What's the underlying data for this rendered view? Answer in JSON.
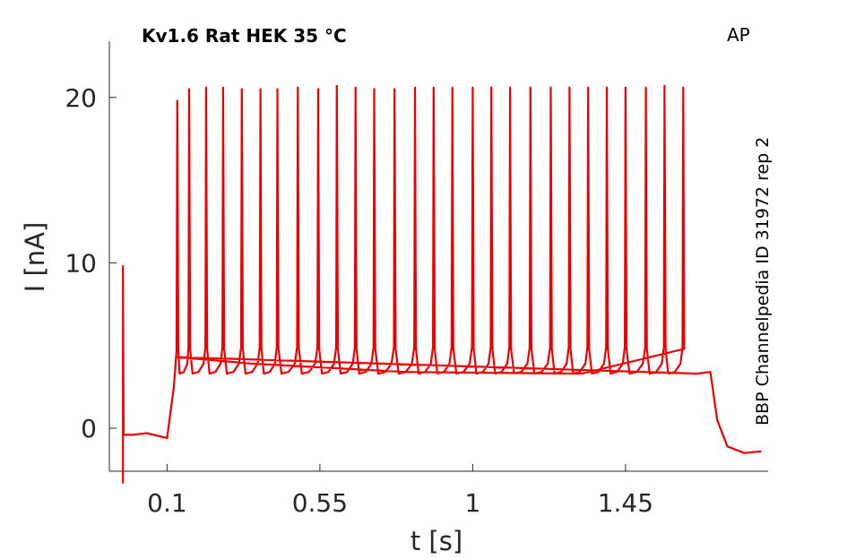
{
  "chart_data": {
    "type": "line",
    "title": "Kv1.6  Rat  HEK  35 °C",
    "corner_label": "AP",
    "side_label": "BBP Channelpedia ID 31972 rep 2",
    "xlabel": "t [s]",
    "ylabel": "I [nA]",
    "x_ticks": [
      0.1,
      0.55,
      1,
      1.45
    ],
    "x_tick_labels": [
      "0.1",
      "0.55",
      "1",
      "1.45"
    ],
    "y_ticks": [
      0,
      10,
      20
    ],
    "y_tick_labels": [
      "0",
      "10",
      "20"
    ],
    "xlim": [
      -0.07,
      1.87
    ],
    "ylim": [
      -2.6,
      23.4
    ],
    "grid": false,
    "legend": "none",
    "line_color": "#ee0000",
    "series": [
      {
        "key_points": [
          [
            -0.03,
            -0.4
          ],
          [
            -0.03,
            -3.3
          ],
          [
            -0.03,
            9.8
          ],
          [
            -0.028,
            -0.4
          ],
          [
            0.0,
            -0.4
          ],
          [
            0.04,
            -0.3
          ],
          [
            0.1,
            -0.6
          ],
          [
            0.12,
            2.5
          ],
          [
            0.13,
            4.3
          ],
          [
            1.66,
            3.3
          ],
          [
            1.7,
            3.4
          ],
          [
            1.72,
            0.5
          ],
          [
            1.75,
            -1.1
          ],
          [
            1.8,
            -1.5
          ],
          [
            1.85,
            -1.4
          ]
        ],
        "spike_times": [
          0.13,
          0.165,
          0.215,
          0.265,
          0.32,
          0.375,
          0.425,
          0.485,
          0.545,
          0.6,
          0.655,
          0.71,
          0.77,
          0.83,
          0.885,
          0.94,
          1.0,
          1.055,
          1.11,
          1.17,
          1.23,
          1.285,
          1.34,
          1.395,
          1.45,
          1.51,
          1.565,
          1.62
        ],
        "spike_peaks": [
          19.8,
          20.5,
          20.6,
          20.6,
          20.5,
          20.5,
          20.5,
          20.6,
          20.5,
          20.7,
          20.6,
          20.5,
          20.5,
          20.6,
          20.6,
          20.6,
          20.6,
          20.6,
          20.6,
          20.6,
          20.6,
          20.6,
          20.6,
          20.6,
          20.6,
          20.6,
          20.7,
          20.6
        ],
        "trough_level": 3.3,
        "plateau_start": 4.7
      }
    ]
  }
}
